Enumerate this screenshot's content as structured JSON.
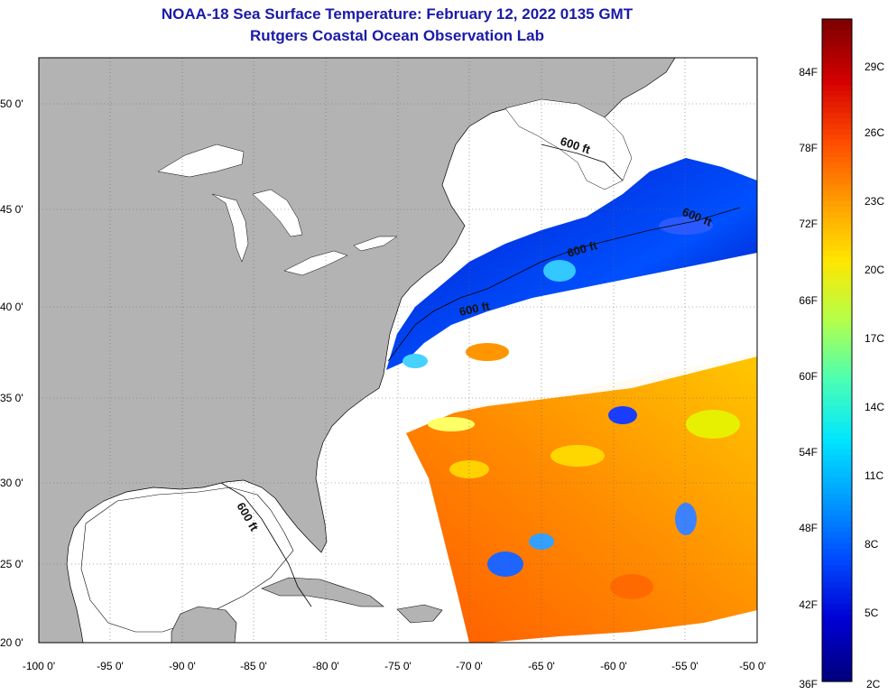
{
  "title": {
    "line1": "NOAA-18 Sea Surface Temperature:  February 12, 2022 0135 GMT",
    "line2": "Rutgers Coastal Ocean Observation Lab"
  },
  "axes": {
    "y_ticks": [
      "50 0'",
      "45 0'",
      "40 0'",
      "35 0'",
      "30 0'",
      "25 0'",
      "20 0'"
    ],
    "x_ticks": [
      "-100 0'",
      "-95 0'",
      "-90 0'",
      "-85 0'",
      "-80 0'",
      "-75 0'",
      "-70 0'",
      "-65 0'",
      "-60 0'",
      "-55 0'",
      "-50 0'"
    ]
  },
  "contour_labels": [
    "600 ft",
    "600 ft",
    "600 ft",
    "600 ft",
    "600 ft"
  ],
  "colorbar": {
    "fahrenheit": [
      "84F",
      "78F",
      "72F",
      "66F",
      "60F",
      "54F",
      "48F",
      "42F",
      "36F"
    ],
    "celsius": [
      "29C",
      "26C",
      "23C",
      "20C",
      "17C",
      "14C",
      "11C",
      "8C",
      "5C",
      "2C"
    ],
    "colors": [
      "#7f0000",
      "#d40000",
      "#ff4a00",
      "#ff9b00",
      "#ffe600",
      "#b4ff4a",
      "#4affb4",
      "#00e6ff",
      "#009bff",
      "#004aff",
      "#0000d4",
      "#00007f"
    ]
  },
  "colors": {
    "land": "#b3b3b3",
    "water_nodata": "#ffffff",
    "title": "#1a1aa8"
  }
}
